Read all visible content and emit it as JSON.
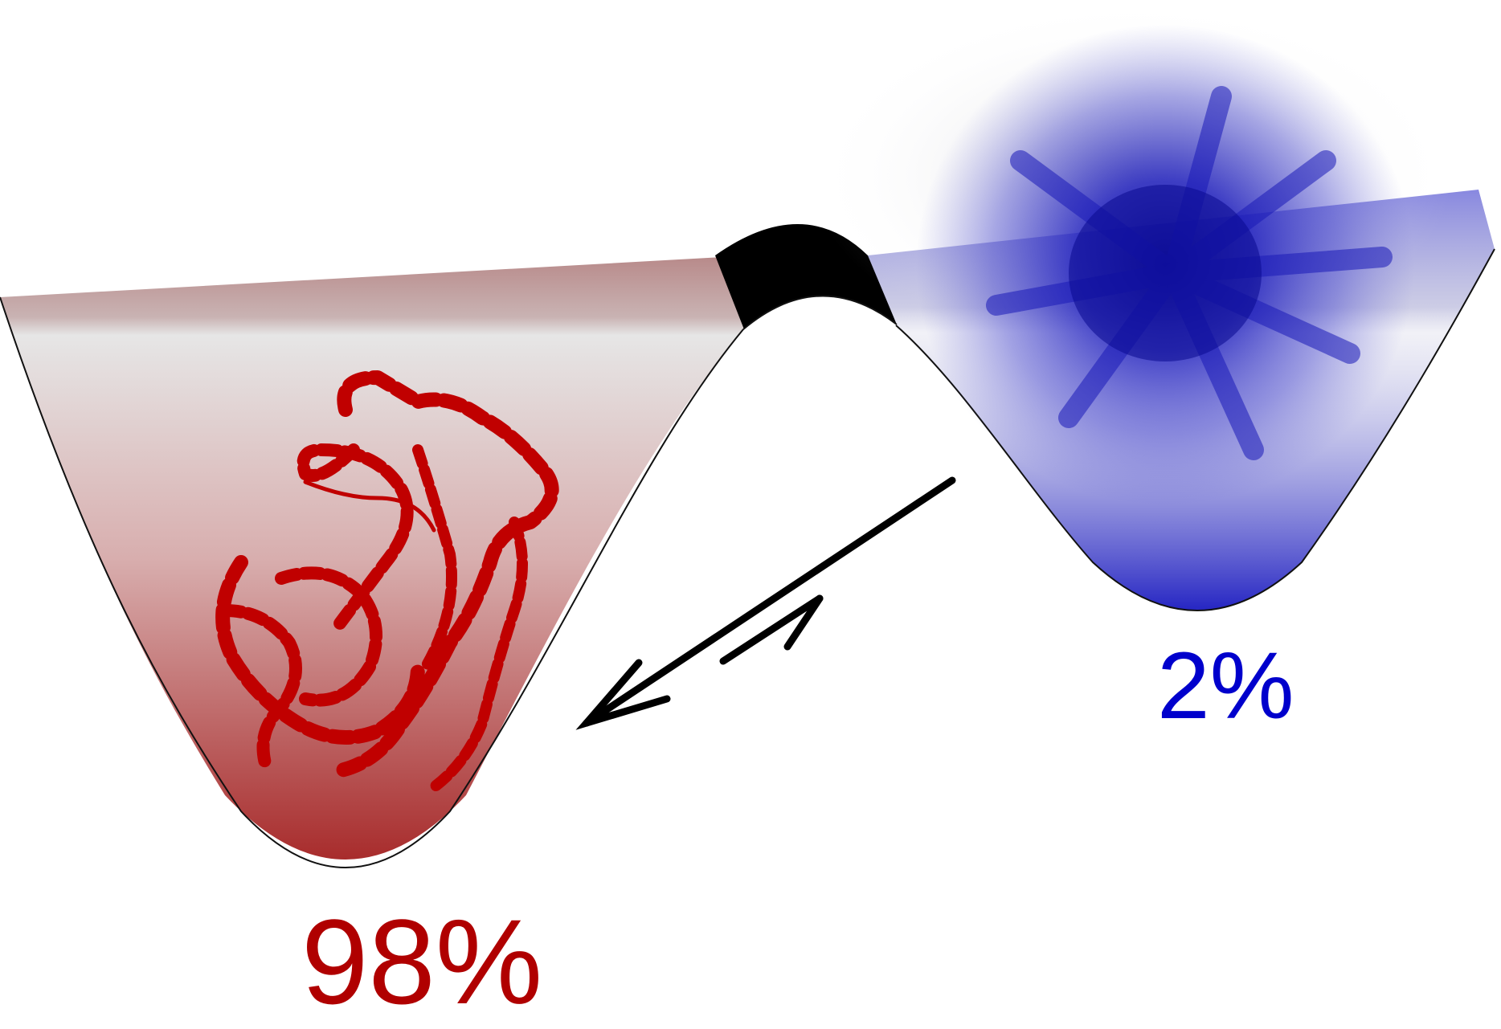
{
  "states": {
    "folded": {
      "label": "98%",
      "color": "#b00000"
    },
    "unfolded": {
      "label": "2%",
      "color": "#0000cc"
    }
  },
  "colors": {
    "left_well": "#a83232",
    "right_well": "#2b2bcc",
    "barrier": "#000000",
    "arrows": "#000000"
  },
  "icons": [
    "folded-protein-icon",
    "unfolded-protein-icon",
    "equilibrium-arrows-icon"
  ]
}
